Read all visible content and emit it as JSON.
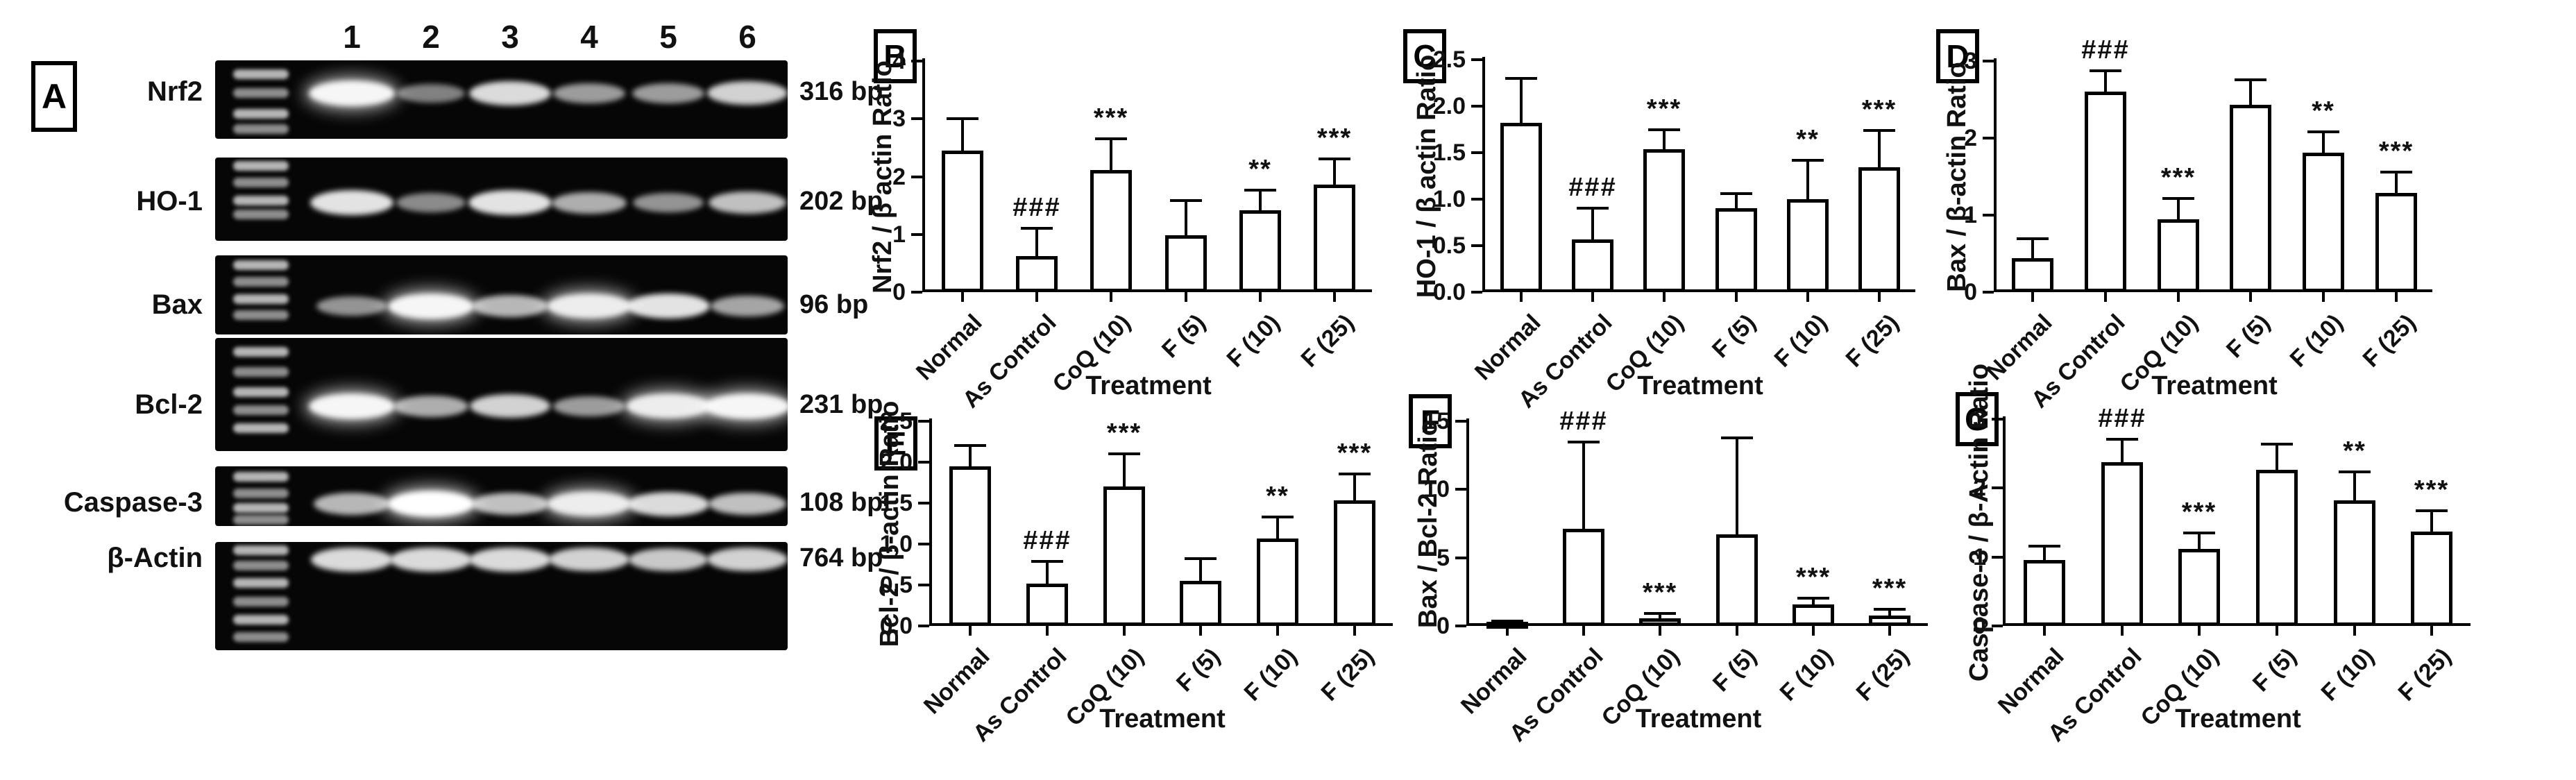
{
  "figure": {
    "panel_a": {
      "label": "A",
      "lane_numbers": [
        "1",
        "2",
        "3",
        "4",
        "5",
        "6"
      ],
      "rows": [
        {
          "name": "Nrf2",
          "bp": "316 bp",
          "band_y": 0.42,
          "bands": [
            0.95,
            0.3,
            0.8,
            0.45,
            0.45,
            0.75
          ],
          "ladder": [
            0.18,
            0.42,
            0.68,
            0.88
          ]
        },
        {
          "name": "HO-1",
          "bp": "202 bp",
          "band_y": 0.54,
          "bands": [
            0.85,
            0.35,
            0.85,
            0.55,
            0.4,
            0.65
          ],
          "ladder": [
            0.1,
            0.3,
            0.52,
            0.68
          ]
        },
        {
          "name": "Bax",
          "bp": "96 bp",
          "band_y": 0.64,
          "bands": [
            0.4,
            0.95,
            0.6,
            0.9,
            0.85,
            0.5
          ],
          "ladder": [
            0.12,
            0.33,
            0.55,
            0.75
          ]
        },
        {
          "name": "Bcl-2",
          "bp": "231 bp",
          "band_y": 0.6,
          "bands": [
            0.95,
            0.55,
            0.75,
            0.45,
            0.9,
            0.95
          ],
          "ladder": [
            0.12,
            0.3,
            0.48,
            0.64,
            0.8
          ]
        },
        {
          "name": "Caspase-3",
          "bp": "108 bp",
          "band_y": 0.63,
          "bands": [
            0.6,
            1.0,
            0.65,
            0.9,
            0.8,
            0.65
          ],
          "ladder": [
            0.18,
            0.45,
            0.7,
            0.9
          ]
        },
        {
          "name": "β-Actin",
          "bp": "764 bp",
          "band_y": 0.16,
          "bands": [
            0.8,
            0.8,
            0.8,
            0.75,
            0.7,
            0.75
          ],
          "ladder": [
            0.08,
            0.22,
            0.38,
            0.55,
            0.72,
            0.88
          ]
        }
      ]
    },
    "colors": {
      "ink": "#000000",
      "background": "#ffffff",
      "bar_fill": "#ffffff"
    }
  },
  "chart_data": [
    {
      "panel": "B",
      "type": "bar",
      "ylabel": "Nrf2 / β actin Ratio",
      "xlabel": "Treatment",
      "categories": [
        "Normal",
        "As Control",
        "CoQ (10)",
        "F (5)",
        "F (10)",
        "F (25)"
      ],
      "values": [
        2.45,
        0.62,
        2.12,
        0.98,
        1.42,
        1.86
      ],
      "errors": [
        0.55,
        0.48,
        0.53,
        0.6,
        0.35,
        0.45
      ],
      "annotations": [
        "",
        "###",
        "***",
        "",
        "**",
        "***"
      ],
      "ylim": [
        0,
        4
      ],
      "yticks": [
        "0",
        "1",
        "2",
        "3",
        "4"
      ],
      "legend": "none",
      "grid": false
    },
    {
      "panel": "C",
      "type": "bar",
      "ylabel": "HO-1 / β actin Ratio",
      "xlabel": "Treatment",
      "categories": [
        "Normal",
        "As Control",
        "CoQ (10)",
        "F (5)",
        "F (10)",
        "F (25)"
      ],
      "values": [
        1.82,
        0.57,
        1.54,
        0.9,
        1.0,
        1.34
      ],
      "errors": [
        0.48,
        0.33,
        0.21,
        0.16,
        0.42,
        0.4
      ],
      "annotations": [
        "",
        "###",
        "***",
        "",
        "**",
        "***"
      ],
      "ylim": [
        0,
        2.5
      ],
      "yticks": [
        "0.0",
        "0.5",
        "1.0",
        "1.5",
        "2.0",
        "2.5"
      ],
      "legend": "none",
      "grid": false
    },
    {
      "panel": "D",
      "type": "bar",
      "ylabel": "Bax / β-actin Ratio",
      "xlabel": "Treatment",
      "categories": [
        "Normal",
        "As Control",
        "CoQ (10)",
        "F (5)",
        "F (10)",
        "F (25)"
      ],
      "values": [
        0.44,
        2.6,
        0.95,
        2.43,
        1.81,
        1.29
      ],
      "errors": [
        0.25,
        0.27,
        0.27,
        0.33,
        0.27,
        0.27
      ],
      "annotations": [
        "",
        "###",
        "***",
        "",
        "**",
        "***"
      ],
      "ylim": [
        0,
        3
      ],
      "yticks": [
        "0",
        "1",
        "2",
        "3"
      ],
      "legend": "none",
      "grid": false
    },
    {
      "panel": "E",
      "type": "bar",
      "ylabel": "Bcl-2 / β-actin Ratio",
      "xlabel": "Treatment",
      "categories": [
        "Normal",
        "As Control",
        "CoQ (10)",
        "F (5)",
        "F (10)",
        "F (25)"
      ],
      "values": [
        1.95,
        0.52,
        1.7,
        0.55,
        1.07,
        1.53
      ],
      "errors": [
        0.25,
        0.27,
        0.4,
        0.27,
        0.26,
        0.33
      ],
      "annotations": [
        "",
        "###",
        "***",
        "",
        "**",
        "***"
      ],
      "ylim": [
        0,
        2.5
      ],
      "yticks": [
        "0.0",
        "0.5",
        "1.0",
        "1.5",
        "2.0",
        "2.5"
      ],
      "legend": "none",
      "grid": false
    },
    {
      "panel": "F",
      "type": "bar",
      "ylabel": "Bax / Bcl-2 Ratio",
      "xlabel": "Treatment",
      "categories": [
        "Normal",
        "As Control",
        "CoQ (10)",
        "F (5)",
        "F (10)",
        "F (25)"
      ],
      "values": [
        0.2,
        7.1,
        0.55,
        6.7,
        1.6,
        0.75
      ],
      "errors": [
        0.15,
        6.4,
        0.35,
        7.1,
        0.45,
        0.45
      ],
      "annotations": [
        "",
        "###",
        "***",
        "",
        "***",
        "***"
      ],
      "ylim": [
        0,
        15
      ],
      "yticks": [
        "0",
        "5",
        "10",
        "15"
      ],
      "legend": "none",
      "grid": false
    },
    {
      "panel": "G",
      "type": "bar",
      "ylabel": "Caspase-3 / β-Actin Ratio",
      "xlabel": "Treatment",
      "categories": [
        "Normal",
        "As Control",
        "CoQ (10)",
        "F (5)",
        "F (10)",
        "F (25)"
      ],
      "values": [
        0.96,
        2.38,
        1.12,
        2.27,
        1.82,
        1.37
      ],
      "errors": [
        0.2,
        0.33,
        0.23,
        0.37,
        0.41,
        0.3
      ],
      "annotations": [
        "",
        "###",
        "***",
        "",
        "**",
        "***"
      ],
      "ylim": [
        0,
        3
      ],
      "yticks": [
        "0",
        "1",
        "2",
        "3"
      ],
      "legend": "none",
      "grid": false
    }
  ]
}
